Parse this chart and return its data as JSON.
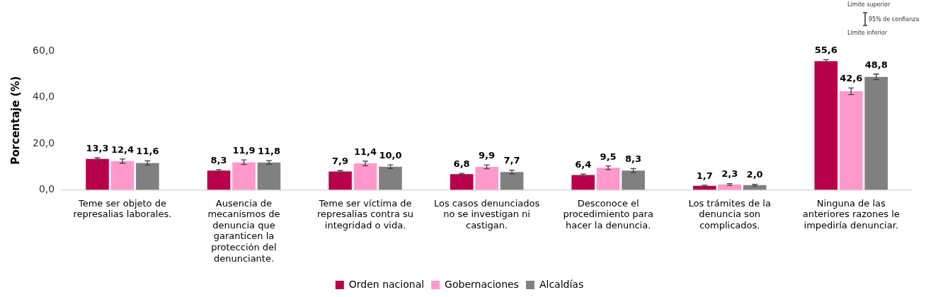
{
  "chart_data": {
    "type": "bar",
    "ylabel": "Porcentaje (%)",
    "categories": [
      "Teme ser objeto de represalias laborales.",
      "Ausencia de mecanismos de denuncia que garanticen la protección del denunciante.",
      "Teme ser víctima de represalias contra su integridad o vida.",
      "Los casos denunciados no se investigan ni castigan.",
      "Desconoce el procedimiento para hacer la denuncia.",
      "Los trámites de la denuncia son complicados.",
      "Ninguna de las anteriores razones le impediría denunciar."
    ],
    "series": [
      {
        "name": "Orden nacional",
        "color": "#b8004b",
        "values": [
          13.3,
          8.3,
          7.9,
          6.8,
          6.4,
          1.7,
          55.6
        ],
        "errors": [
          0.5,
          0.4,
          0.4,
          0.3,
          0.4,
          0.3,
          0.6
        ],
        "value_labels": [
          "13,3",
          "8,3",
          "7,9",
          "6,8",
          "6,4",
          "1,7",
          "55,6"
        ]
      },
      {
        "name": "Gobernaciones",
        "color": "#ff99cc",
        "values": [
          12.4,
          11.9,
          11.4,
          9.9,
          9.5,
          2.3,
          42.6
        ],
        "errors": [
          0.9,
          1.0,
          1.0,
          0.8,
          0.8,
          0.4,
          1.4
        ],
        "value_labels": [
          "12,4",
          "11,9",
          "11,4",
          "9,9",
          "9,5",
          "2,3",
          "42,6"
        ]
      },
      {
        "name": "Alcaldías",
        "color": "#808080",
        "values": [
          11.6,
          11.8,
          10.0,
          7.7,
          8.3,
          2.0,
          48.8
        ],
        "errors": [
          0.9,
          0.8,
          0.8,
          0.8,
          0.9,
          0.4,
          1.2
        ],
        "value_labels": [
          "11,6",
          "11,8",
          "10,0",
          "7,7",
          "8,3",
          "2,0",
          "48,8"
        ]
      }
    ],
    "ylim": [
      0,
      60
    ],
    "yticks": [
      {
        "value": 0,
        "label": "0,0"
      },
      {
        "value": 20,
        "label": "20,0"
      },
      {
        "value": 40,
        "label": "40,0"
      },
      {
        "value": 60,
        "label": "60,0"
      }
    ],
    "grid": false,
    "legend": "bottom",
    "annotations": [
      "Límite superior",
      "95% de confianza",
      "Límite inferior"
    ]
  }
}
